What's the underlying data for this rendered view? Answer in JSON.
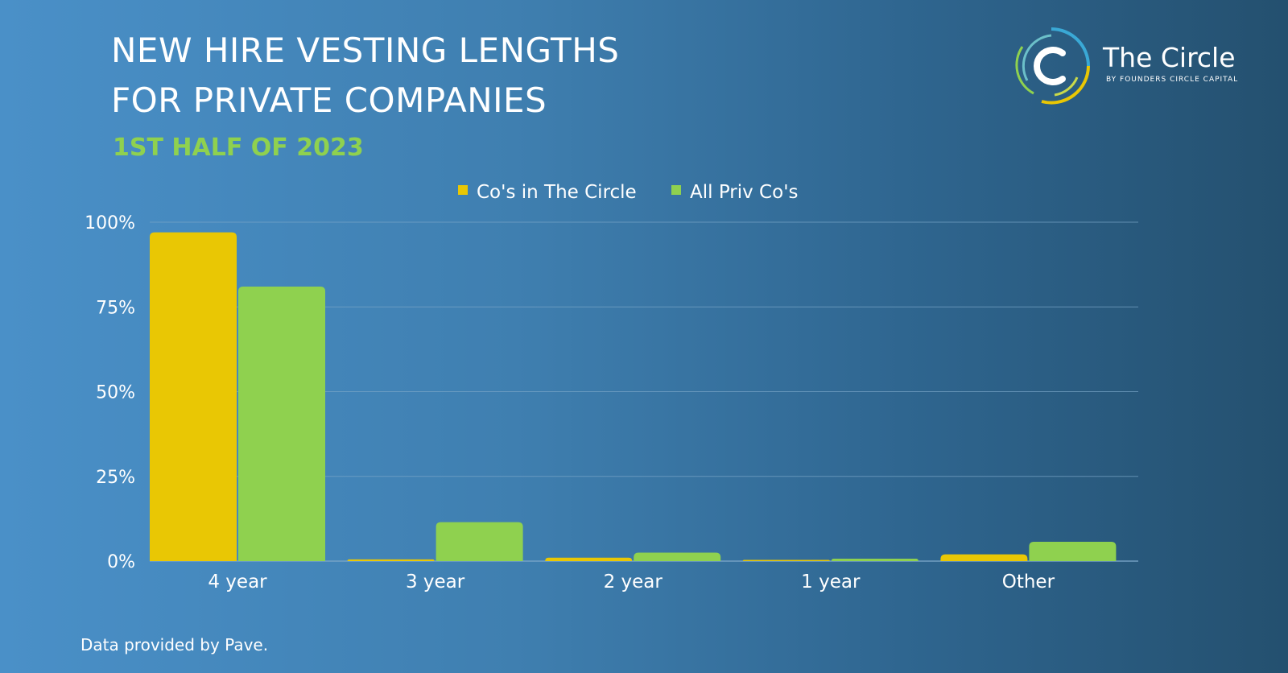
{
  "title_lines": [
    "NEW HIRE VESTING LENGTHS",
    "FOR PRIVATE COMPANIES"
  ],
  "subtitle": "1ST HALF OF 2023",
  "logo": {
    "name": "The Circle",
    "tagline": "BY FOUNDERS CIRCLE CAPITAL",
    "icon": "circle-c-logo-icon"
  },
  "footer": "Data provided by Pave.",
  "colors": {
    "circle": "#e9c704",
    "all_priv": "#8fd14f",
    "subtitle": "#8fd14f",
    "grid": "#7aa6c8"
  },
  "chart_data": {
    "type": "bar",
    "categories": [
      "4 year",
      "3 year",
      "2 year",
      "1 year",
      "Other"
    ],
    "series": [
      {
        "name": "Co's in The Circle",
        "values": [
          97,
          0.5,
          1,
          0.3,
          2
        ]
      },
      {
        "name": "All Priv Co's",
        "values": [
          81,
          11.5,
          2.5,
          0.7,
          5.7
        ]
      }
    ],
    "yticks": [
      "0%",
      "25%",
      "50%",
      "75%",
      "100%"
    ],
    "ylim": [
      0,
      100
    ],
    "grid": true,
    "legend_position": "top-center"
  }
}
